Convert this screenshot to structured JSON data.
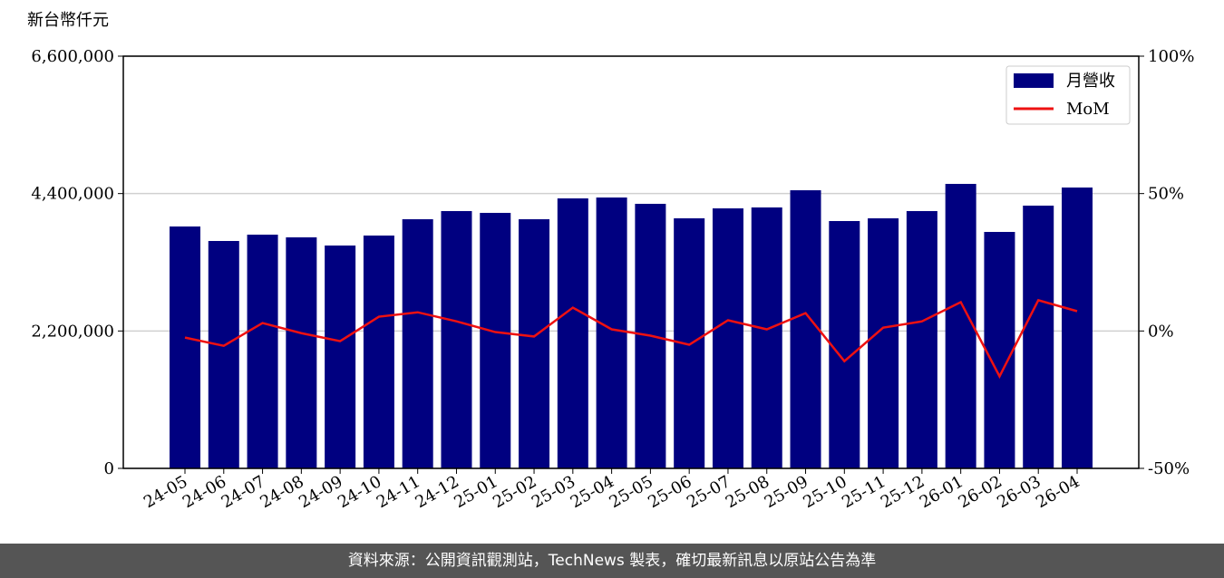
{
  "chart_data": {
    "type": "bar-line",
    "y_label": "新台幣仟元",
    "categories": [
      "24-05",
      "24-06",
      "24-07",
      "24-08",
      "24-09",
      "24-10",
      "24-11",
      "24-12",
      "25-01",
      "25-02",
      "25-03",
      "25-04",
      "25-05",
      "25-06",
      "25-07",
      "25-08",
      "25-09",
      "25-10",
      "25-11",
      "25-12",
      "26-01",
      "26-02",
      "26-03",
      "26-04"
    ],
    "series": [
      {
        "name": "月營收",
        "color": "#000080",
        "values": [
          3873000,
          3641000,
          3742000,
          3699000,
          3568000,
          3728000,
          3989000,
          4120000,
          4091000,
          3989000,
          4323000,
          4337000,
          4236000,
          4004000,
          4163000,
          4178000,
          4453000,
          3960000,
          4004000,
          4120000,
          4555000,
          3786000,
          4207000,
          4497000
        ]
      },
      {
        "name": "MoM",
        "color": "#ee1111",
        "axis": "y2",
        "values": [
          -2.4,
          -5.4,
          2.9,
          -0.8,
          -3.7,
          5.2,
          6.8,
          3.5,
          -0.4,
          -2.0,
          8.5,
          0.6,
          -1.7,
          -5.0,
          3.9,
          0.6,
          6.5,
          -11.0,
          1.2,
          3.5,
          10.5,
          -16.5,
          11.2,
          7.2
        ]
      }
    ],
    "ylim": [
      0,
      6600000
    ],
    "yticks": [
      0,
      {
        "value": 2200000,
        "label": "2,200,000"
      },
      {
        "value": 4400000,
        "label": "4,400,000"
      },
      {
        "value": 6600000,
        "label": "6,600,000"
      }
    ],
    "y2lim": [
      -50,
      100
    ],
    "y2ticks": [
      {
        "value": -50,
        "label": "-50%"
      },
      {
        "value": 0,
        "label": "0%"
      },
      {
        "value": 50,
        "label": "50%"
      },
      {
        "value": 100,
        "label": "100%"
      }
    ],
    "grid": true,
    "legend": "upper right"
  },
  "footer": "資料來源：公開資訊觀測站，TechNews 製表，確切最新訊息以原站公告為準"
}
